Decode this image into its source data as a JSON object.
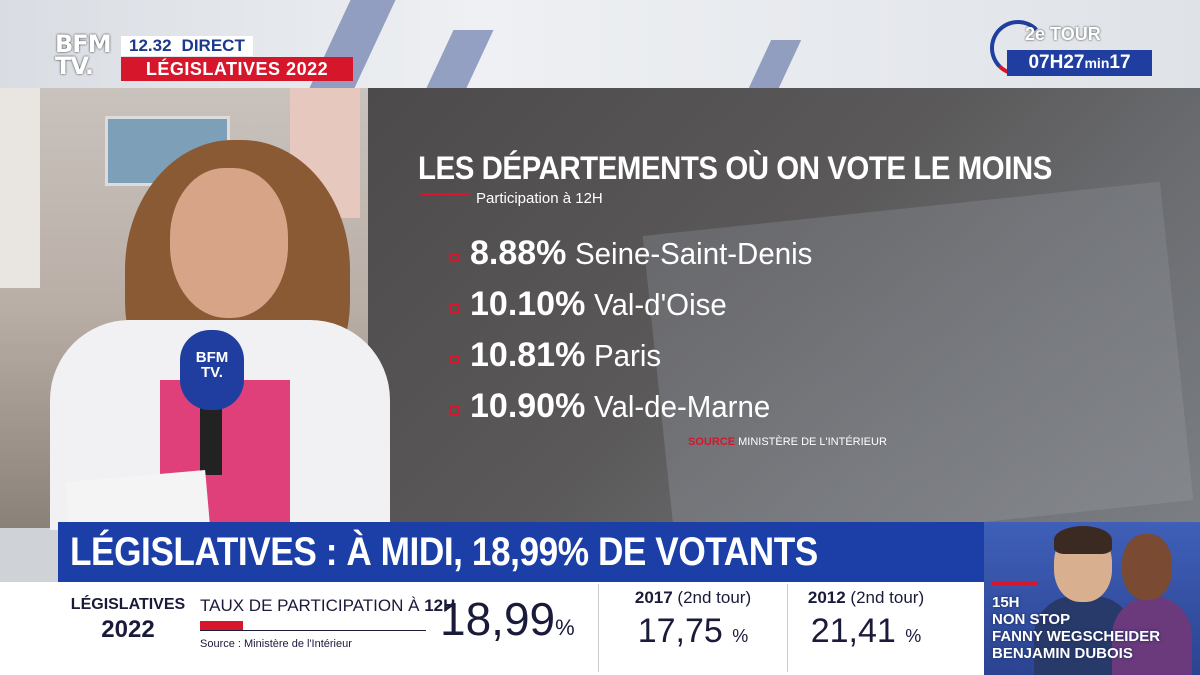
{
  "channel": {
    "logo_line1": "BFM",
    "logo_line2": "TV.",
    "time": "12.32",
    "live_label": "DIRECT",
    "program_tag": "LÉGISLATIVES 2022"
  },
  "countdown": {
    "round": "2e TOUR",
    "hours": "07H27",
    "min_label": "min",
    "seconds": "17"
  },
  "graphic": {
    "title": "LES DÉPARTEMENTS OÙ ON VOTE LE MOINS",
    "subtitle": "Participation à 12H",
    "departments": [
      {
        "pct": "8.88%",
        "name": "Seine-Saint-Denis"
      },
      {
        "pct": "10.10%",
        "name": "Val-d'Oise"
      },
      {
        "pct": "10.81%",
        "name": "Paris"
      },
      {
        "pct": "10.90%",
        "name": "Val-de-Marne"
      }
    ],
    "source_label": "SOURCE",
    "source_text": "MINISTÈRE DE L'INTÉRIEUR"
  },
  "headline": "LÉGISLATIVES : À MIDI, 18,99% DE VOTANTS",
  "strip": {
    "leg_line1": "LÉGISLATIVES",
    "leg_line2": "2022",
    "taux_label": "TAUX DE PARTICIPATION À",
    "taux_hour": "12H",
    "participation_pct": 18.99,
    "big_value": "18,99",
    "pct_sign": "%",
    "source": "Source : Ministère de l'Intérieur",
    "comparisons": [
      {
        "year": "2017",
        "round": "(2nd tour)",
        "value": "17,75",
        "unit": "%"
      },
      {
        "year": "2012",
        "round": "(2nd tour)",
        "value": "21,41",
        "unit": "%"
      }
    ]
  },
  "promo": {
    "time": "15H",
    "show": "NON STOP",
    "host1": "FANNY WEGSCHEIDER",
    "host2": "BENJAMIN DUBOIS"
  },
  "colors": {
    "brand_blue": "#1b3fa6",
    "brand_red": "#d6162b"
  }
}
